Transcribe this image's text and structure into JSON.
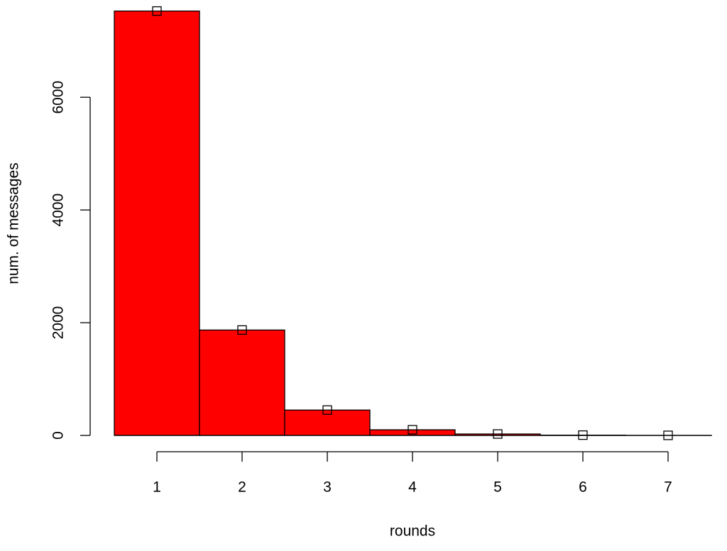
{
  "chart_data": {
    "type": "bar",
    "x_label": "rounds",
    "y_label": "num. of messages",
    "x": [
      1,
      2,
      3,
      4,
      5,
      6,
      7
    ],
    "values": [
      7530,
      1870,
      450,
      100,
      25,
      5,
      1
    ],
    "color": "#ff0000",
    "xlim": [
      0.5,
      7.5
    ],
    "xticks": [
      1,
      2,
      3,
      4,
      5,
      6,
      7
    ],
    "ylim": [
      0,
      7600
    ],
    "yticks": [
      0,
      2000,
      4000,
      6000
    ],
    "markers": true,
    "grid": false
  }
}
